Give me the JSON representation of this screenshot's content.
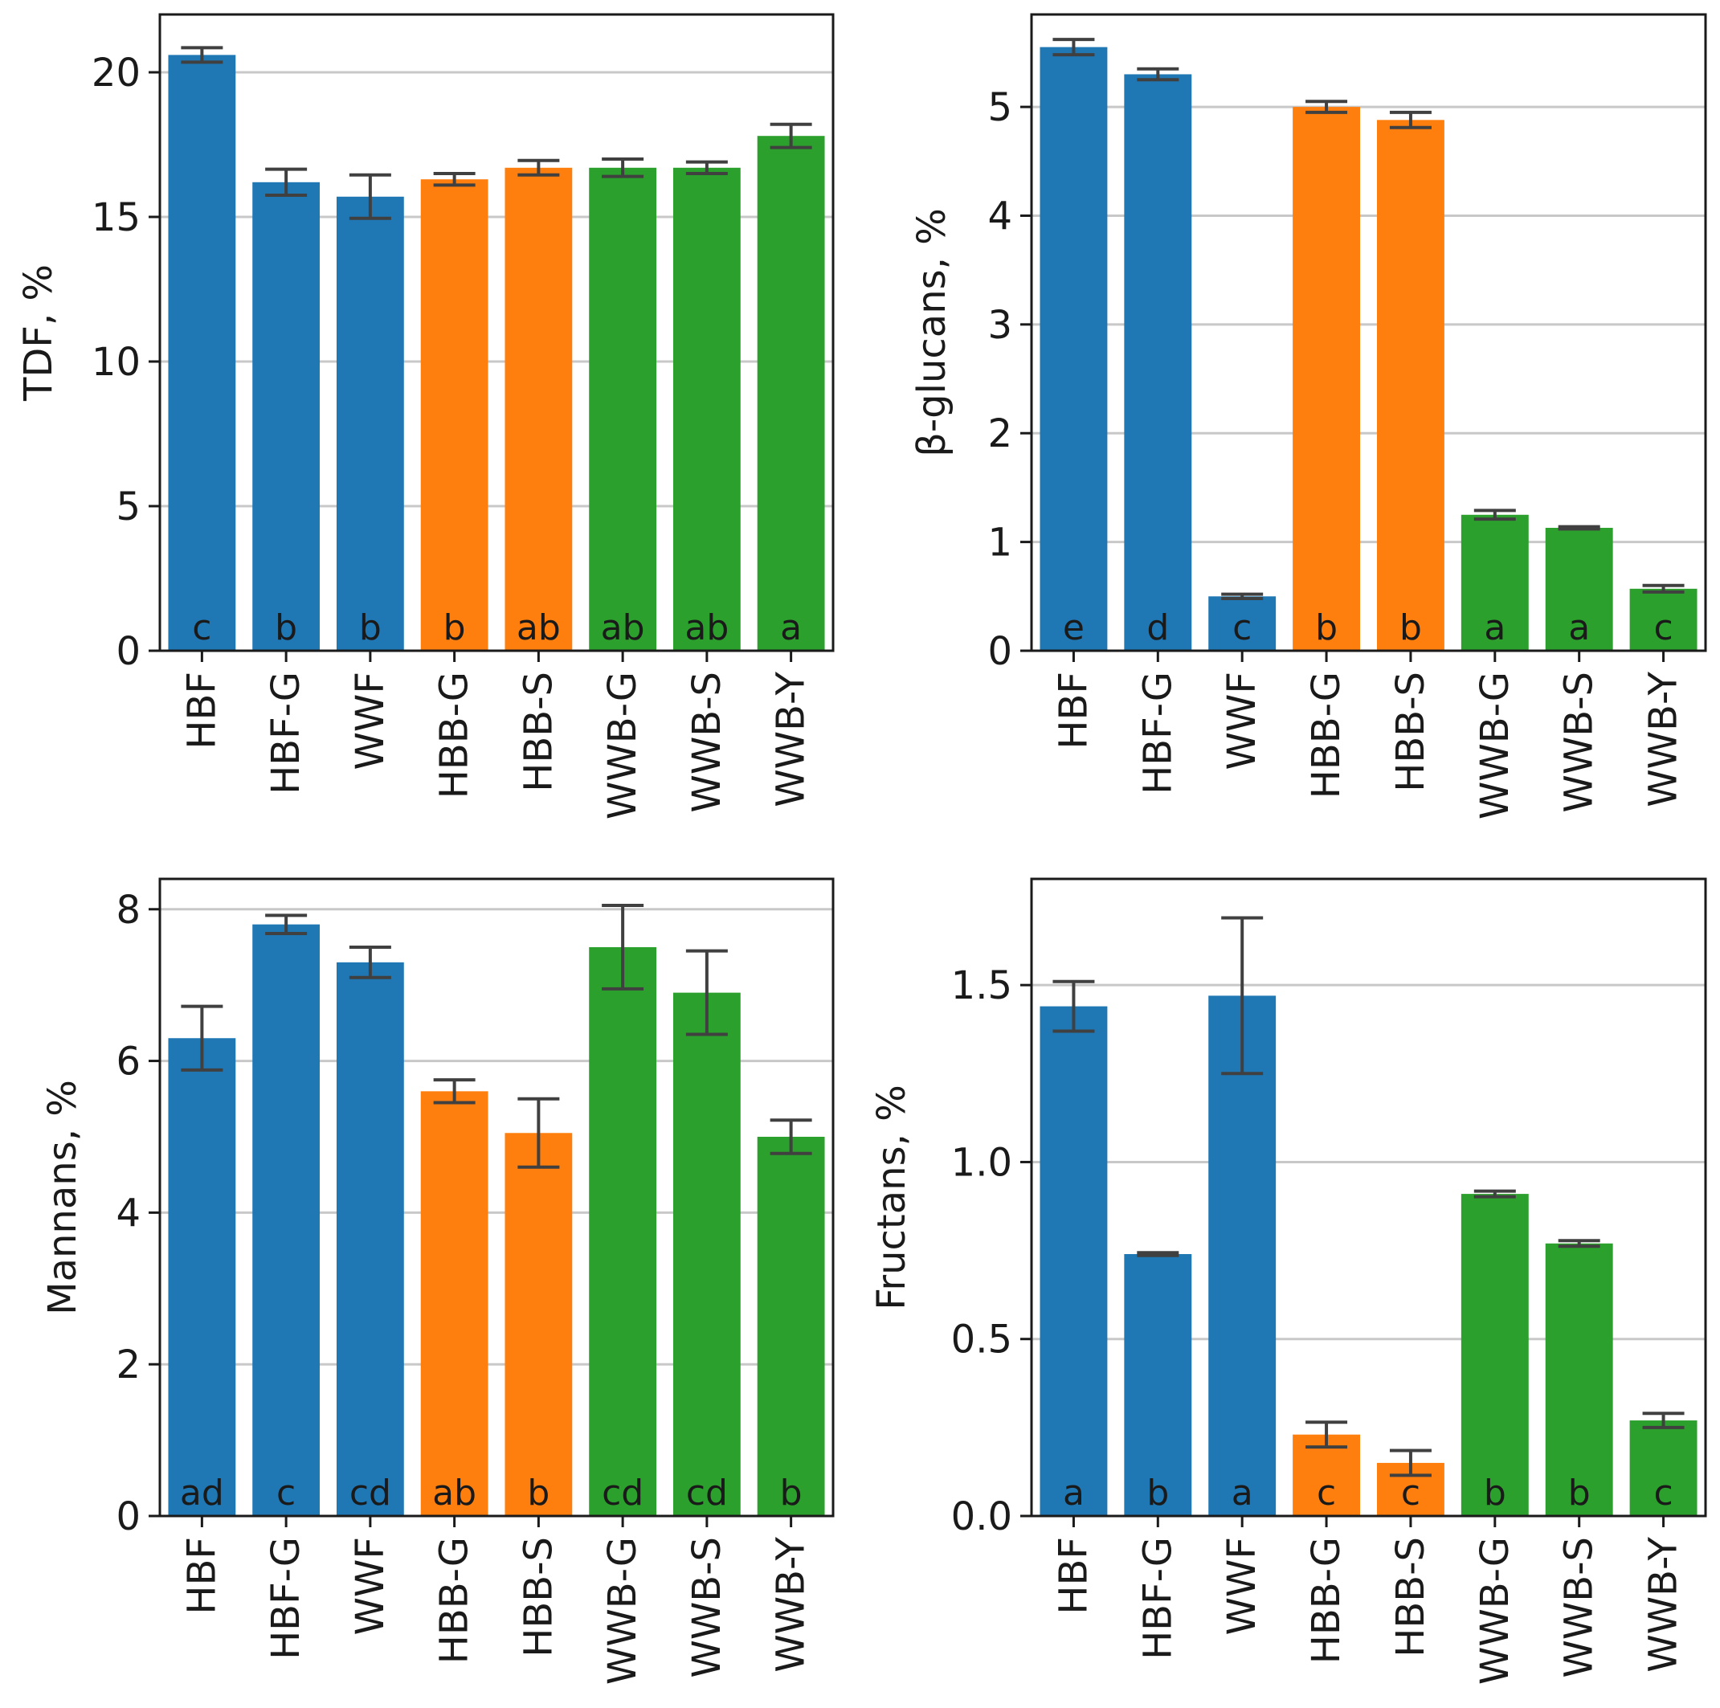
{
  "colors": {
    "blue": "#1f77b4",
    "orange": "#ff7f0e",
    "green": "#2ca02c",
    "grid": "#c8c8c8",
    "errorbar": "#404040",
    "axis": "#1a1a1a"
  },
  "chart_data": [
    {
      "type": "bar",
      "position": "top-left",
      "ylabel": "TDF, %",
      "ylim": [
        0,
        22
      ],
      "yticks": [
        0,
        5,
        10,
        15,
        20
      ],
      "grid": true,
      "categories": [
        "HBF",
        "HBF-G",
        "WWF",
        "HBB-G",
        "HBB-S",
        "WWB-G",
        "WWB-S",
        "WWB-Y"
      ],
      "values": [
        20.6,
        16.2,
        15.7,
        16.3,
        16.7,
        16.7,
        16.7,
        17.8
      ],
      "errors": [
        0.25,
        0.45,
        0.75,
        0.2,
        0.25,
        0.3,
        0.2,
        0.4
      ],
      "color_keys": [
        "blue",
        "blue",
        "blue",
        "orange",
        "orange",
        "green",
        "green",
        "green"
      ],
      "significance": [
        "c",
        "b",
        "b",
        "b",
        "ab",
        "ab",
        "ab",
        "a"
      ]
    },
    {
      "type": "bar",
      "position": "top-right",
      "ylabel": "β-glucans, %",
      "ylim": [
        0,
        5.85
      ],
      "yticks": [
        0,
        1,
        2,
        3,
        4,
        5
      ],
      "grid": true,
      "categories": [
        "HBF",
        "HBF-G",
        "WWF",
        "HBB-G",
        "HBB-S",
        "WWB-G",
        "WWB-S",
        "WWB-Y"
      ],
      "values": [
        5.55,
        5.3,
        0.5,
        5.0,
        4.88,
        1.25,
        1.13,
        0.57
      ],
      "errors": [
        0.07,
        0.05,
        0.02,
        0.05,
        0.07,
        0.04,
        0.01,
        0.03
      ],
      "color_keys": [
        "blue",
        "blue",
        "blue",
        "orange",
        "orange",
        "green",
        "green",
        "green"
      ],
      "significance": [
        "e",
        "d",
        "c",
        "b",
        "b",
        "a",
        "a",
        "c"
      ]
    },
    {
      "type": "bar",
      "position": "bottom-left",
      "ylabel": "Mannans, %",
      "ylim": [
        0,
        8.4
      ],
      "yticks": [
        0,
        2,
        4,
        6,
        8
      ],
      "grid": true,
      "categories": [
        "HBF",
        "HBF-G",
        "WWF",
        "HBB-G",
        "HBB-S",
        "WWB-G",
        "WWB-S",
        "WWB-Y"
      ],
      "values": [
        6.3,
        7.8,
        7.3,
        5.6,
        5.05,
        7.5,
        6.9,
        5.0
      ],
      "errors": [
        0.42,
        0.12,
        0.2,
        0.15,
        0.45,
        0.55,
        0.55,
        0.22
      ],
      "color_keys": [
        "blue",
        "blue",
        "blue",
        "orange",
        "orange",
        "green",
        "green",
        "green"
      ],
      "significance": [
        "ad",
        "c",
        "cd",
        "ab",
        "b",
        "cd",
        "cd",
        "b"
      ]
    },
    {
      "type": "bar",
      "position": "bottom-right",
      "ylabel": "Fructans, %",
      "ylim": [
        0,
        1.8
      ],
      "yticks": [
        0.0,
        0.5,
        1.0,
        1.5
      ],
      "ytick_labels": [
        "0.0",
        "0.5",
        "1.0",
        "1.5"
      ],
      "grid": true,
      "categories": [
        "HBF",
        "HBF-G",
        "WWF",
        "HBB-G",
        "HBB-S",
        "WWB-G",
        "WWB-S",
        "WWB-Y"
      ],
      "values": [
        1.44,
        0.74,
        1.47,
        0.23,
        0.15,
        0.91,
        0.77,
        0.27
      ],
      "errors": [
        0.07,
        0.004,
        0.22,
        0.035,
        0.035,
        0.008,
        0.008,
        0.02
      ],
      "color_keys": [
        "blue",
        "blue",
        "blue",
        "orange",
        "orange",
        "green",
        "green",
        "green"
      ],
      "significance": [
        "a",
        "b",
        "a",
        "c",
        "c",
        "b",
        "b",
        "c"
      ]
    }
  ]
}
